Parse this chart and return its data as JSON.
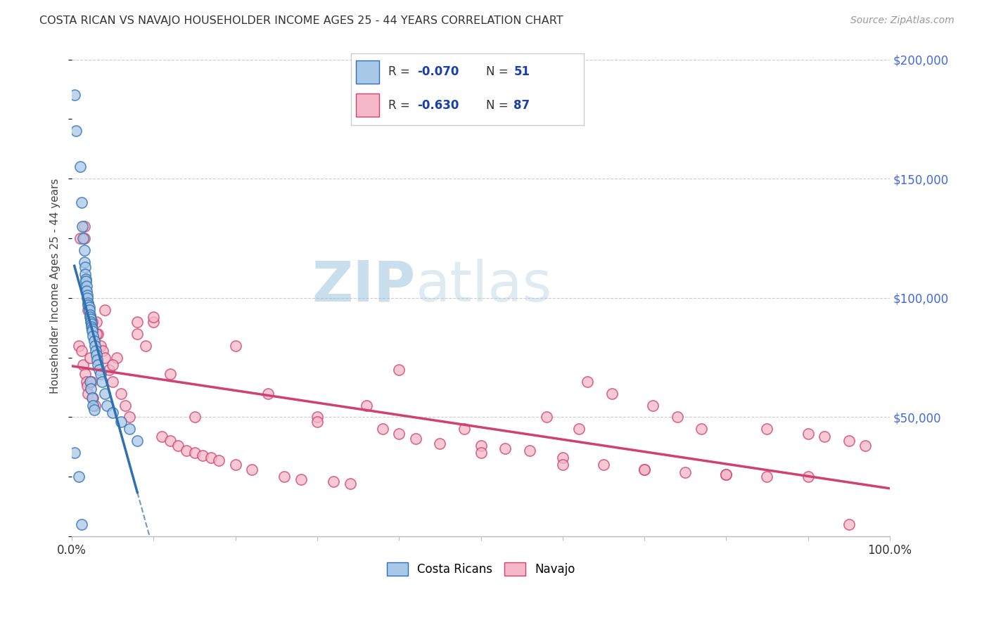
{
  "title": "COSTA RICAN VS NAVAJO HOUSEHOLDER INCOME AGES 25 - 44 YEARS CORRELATION CHART",
  "source": "Source: ZipAtlas.com",
  "ylabel": "Householder Income Ages 25 - 44 years",
  "xlim": [
    0,
    1.0
  ],
  "ylim": [
    0,
    210000
  ],
  "ytick_values": [
    50000,
    100000,
    150000,
    200000
  ],
  "color_cr": "#a8c8e8",
  "color_navajo": "#f4b8c8",
  "color_cr_line": "#3070b0",
  "color_navajo_line": "#d04070",
  "background": "#ffffff",
  "watermark_zip": "ZIP",
  "watermark_atlas": "atlas",
  "cr_x": [
    0.003,
    0.005,
    0.01,
    0.012,
    0.013,
    0.014,
    0.015,
    0.015,
    0.016,
    0.016,
    0.017,
    0.017,
    0.018,
    0.018,
    0.019,
    0.019,
    0.02,
    0.02,
    0.021,
    0.021,
    0.022,
    0.022,
    0.023,
    0.023,
    0.024,
    0.024,
    0.025,
    0.025,
    0.026,
    0.027,
    0.028,
    0.029,
    0.03,
    0.031,
    0.032,
    0.033,
    0.035,
    0.037,
    0.04,
    0.043,
    0.05,
    0.06,
    0.07,
    0.08,
    0.022,
    0.023,
    0.025,
    0.026,
    0.027,
    0.003,
    0.008,
    0.012
  ],
  "cr_y": [
    185000,
    170000,
    155000,
    140000,
    130000,
    125000,
    120000,
    115000,
    113000,
    110000,
    108000,
    107000,
    105000,
    103000,
    101000,
    100000,
    98000,
    97000,
    96000,
    95000,
    93000,
    92000,
    91000,
    90000,
    89000,
    88000,
    87000,
    86000,
    84000,
    82000,
    80000,
    78000,
    76000,
    74000,
    72000,
    70000,
    68000,
    65000,
    60000,
    55000,
    52000,
    48000,
    45000,
    40000,
    65000,
    62000,
    58000,
    55000,
    53000,
    35000,
    25000,
    5000
  ],
  "navajo_x": [
    0.008,
    0.01,
    0.012,
    0.014,
    0.015,
    0.016,
    0.018,
    0.019,
    0.02,
    0.022,
    0.024,
    0.026,
    0.028,
    0.03,
    0.032,
    0.035,
    0.038,
    0.04,
    0.045,
    0.05,
    0.055,
    0.06,
    0.065,
    0.07,
    0.08,
    0.09,
    0.1,
    0.11,
    0.12,
    0.13,
    0.14,
    0.15,
    0.16,
    0.17,
    0.18,
    0.2,
    0.22,
    0.24,
    0.26,
    0.28,
    0.3,
    0.32,
    0.34,
    0.36,
    0.38,
    0.4,
    0.42,
    0.45,
    0.48,
    0.5,
    0.53,
    0.56,
    0.6,
    0.65,
    0.7,
    0.75,
    0.8,
    0.85,
    0.9,
    0.92,
    0.95,
    0.97,
    0.015,
    0.02,
    0.025,
    0.03,
    0.04,
    0.05,
    0.08,
    0.1,
    0.12,
    0.15,
    0.2,
    0.3,
    0.4,
    0.5,
    0.6,
    0.7,
    0.8,
    0.85,
    0.9,
    0.95,
    0.63,
    0.66,
    0.71,
    0.74,
    0.77,
    0.58,
    0.62
  ],
  "navajo_y": [
    80000,
    125000,
    78000,
    72000,
    125000,
    68000,
    65000,
    63000,
    60000,
    75000,
    65000,
    58000,
    55000,
    90000,
    85000,
    80000,
    78000,
    95000,
    70000,
    65000,
    75000,
    60000,
    55000,
    50000,
    85000,
    80000,
    90000,
    42000,
    40000,
    38000,
    36000,
    35000,
    34000,
    33000,
    32000,
    30000,
    28000,
    60000,
    25000,
    24000,
    50000,
    23000,
    22000,
    55000,
    45000,
    43000,
    41000,
    39000,
    45000,
    38000,
    37000,
    36000,
    33000,
    30000,
    28000,
    27000,
    26000,
    45000,
    43000,
    42000,
    40000,
    38000,
    130000,
    95000,
    90000,
    85000,
    75000,
    72000,
    90000,
    92000,
    68000,
    50000,
    80000,
    48000,
    70000,
    35000,
    30000,
    28000,
    26000,
    25000,
    25000,
    5000,
    65000,
    60000,
    55000,
    50000,
    45000,
    50000,
    45000
  ]
}
